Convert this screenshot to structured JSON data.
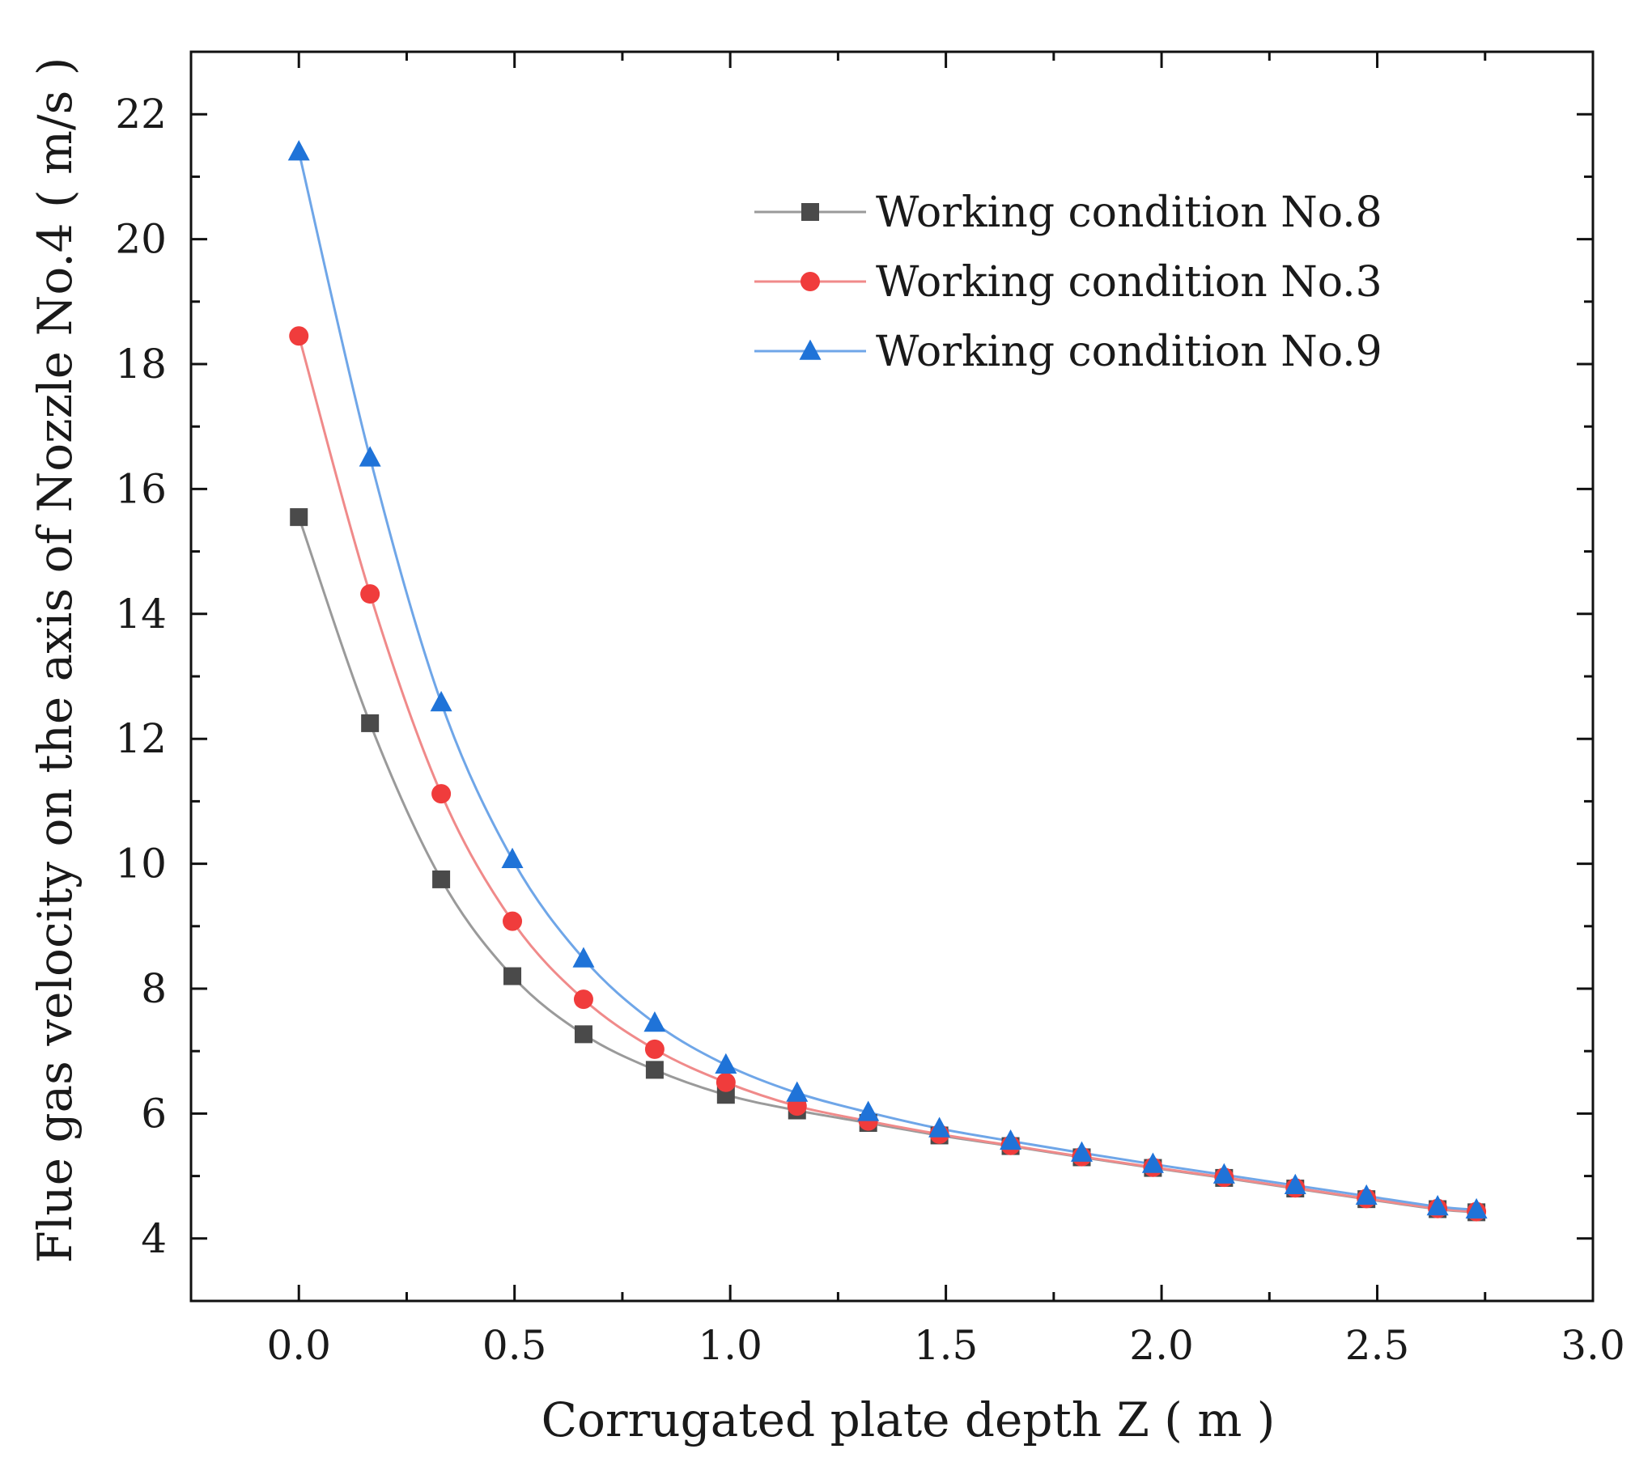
{
  "chart_data": {
    "type": "line",
    "title": "",
    "xlabel": "Corrugated plate depth Z ( m )",
    "ylabel": "Flue gas velocity on the axis of Nozzle No.4 ( m/s )",
    "xlim": [
      -0.25,
      3.0
    ],
    "ylim": [
      3,
      23
    ],
    "x_ticks": [
      0.0,
      0.5,
      1.0,
      1.5,
      2.0,
      2.5,
      3.0
    ],
    "x_tick_labels": [
      "0.0",
      "0.5",
      "1.0",
      "1.5",
      "2.0",
      "2.5",
      "3.0"
    ],
    "y_ticks": [
      4,
      6,
      8,
      10,
      12,
      14,
      16,
      18,
      20,
      22
    ],
    "y_tick_labels": [
      "4",
      "6",
      "8",
      "10",
      "12",
      "14",
      "16",
      "18",
      "20",
      "22"
    ],
    "grid": false,
    "legend_position": "top-right",
    "x": [
      0.0,
      0.165,
      0.33,
      0.495,
      0.66,
      0.825,
      0.99,
      1.155,
      1.32,
      1.485,
      1.65,
      1.815,
      1.98,
      2.145,
      2.31,
      2.475,
      2.64,
      2.73
    ],
    "series": [
      {
        "name": "Working condition No.8",
        "marker": "square",
        "color": "#4a4a4a",
        "line_color": "#9a9a9a",
        "values": [
          15.55,
          12.25,
          9.75,
          8.2,
          7.27,
          6.7,
          6.3,
          6.05,
          5.85,
          5.65,
          5.48,
          5.3,
          5.13,
          4.97,
          4.8,
          4.63,
          4.47,
          4.42
        ]
      },
      {
        "name": "Working condition No.3",
        "marker": "circle",
        "color": "#f03c3c",
        "line_color": "#f08a8a",
        "values": [
          18.45,
          14.32,
          11.12,
          9.08,
          7.83,
          7.03,
          6.5,
          6.12,
          5.88,
          5.67,
          5.49,
          5.31,
          5.14,
          4.98,
          4.81,
          4.64,
          4.48,
          4.43
        ]
      },
      {
        "name": "Working condition No.9",
        "marker": "triangle",
        "color": "#1f73d8",
        "line_color": "#6fa6e8",
        "values": [
          21.4,
          16.5,
          12.58,
          10.07,
          8.48,
          7.45,
          6.78,
          6.33,
          6.02,
          5.76,
          5.56,
          5.37,
          5.19,
          5.02,
          4.85,
          4.68,
          4.51,
          4.46
        ]
      }
    ]
  }
}
